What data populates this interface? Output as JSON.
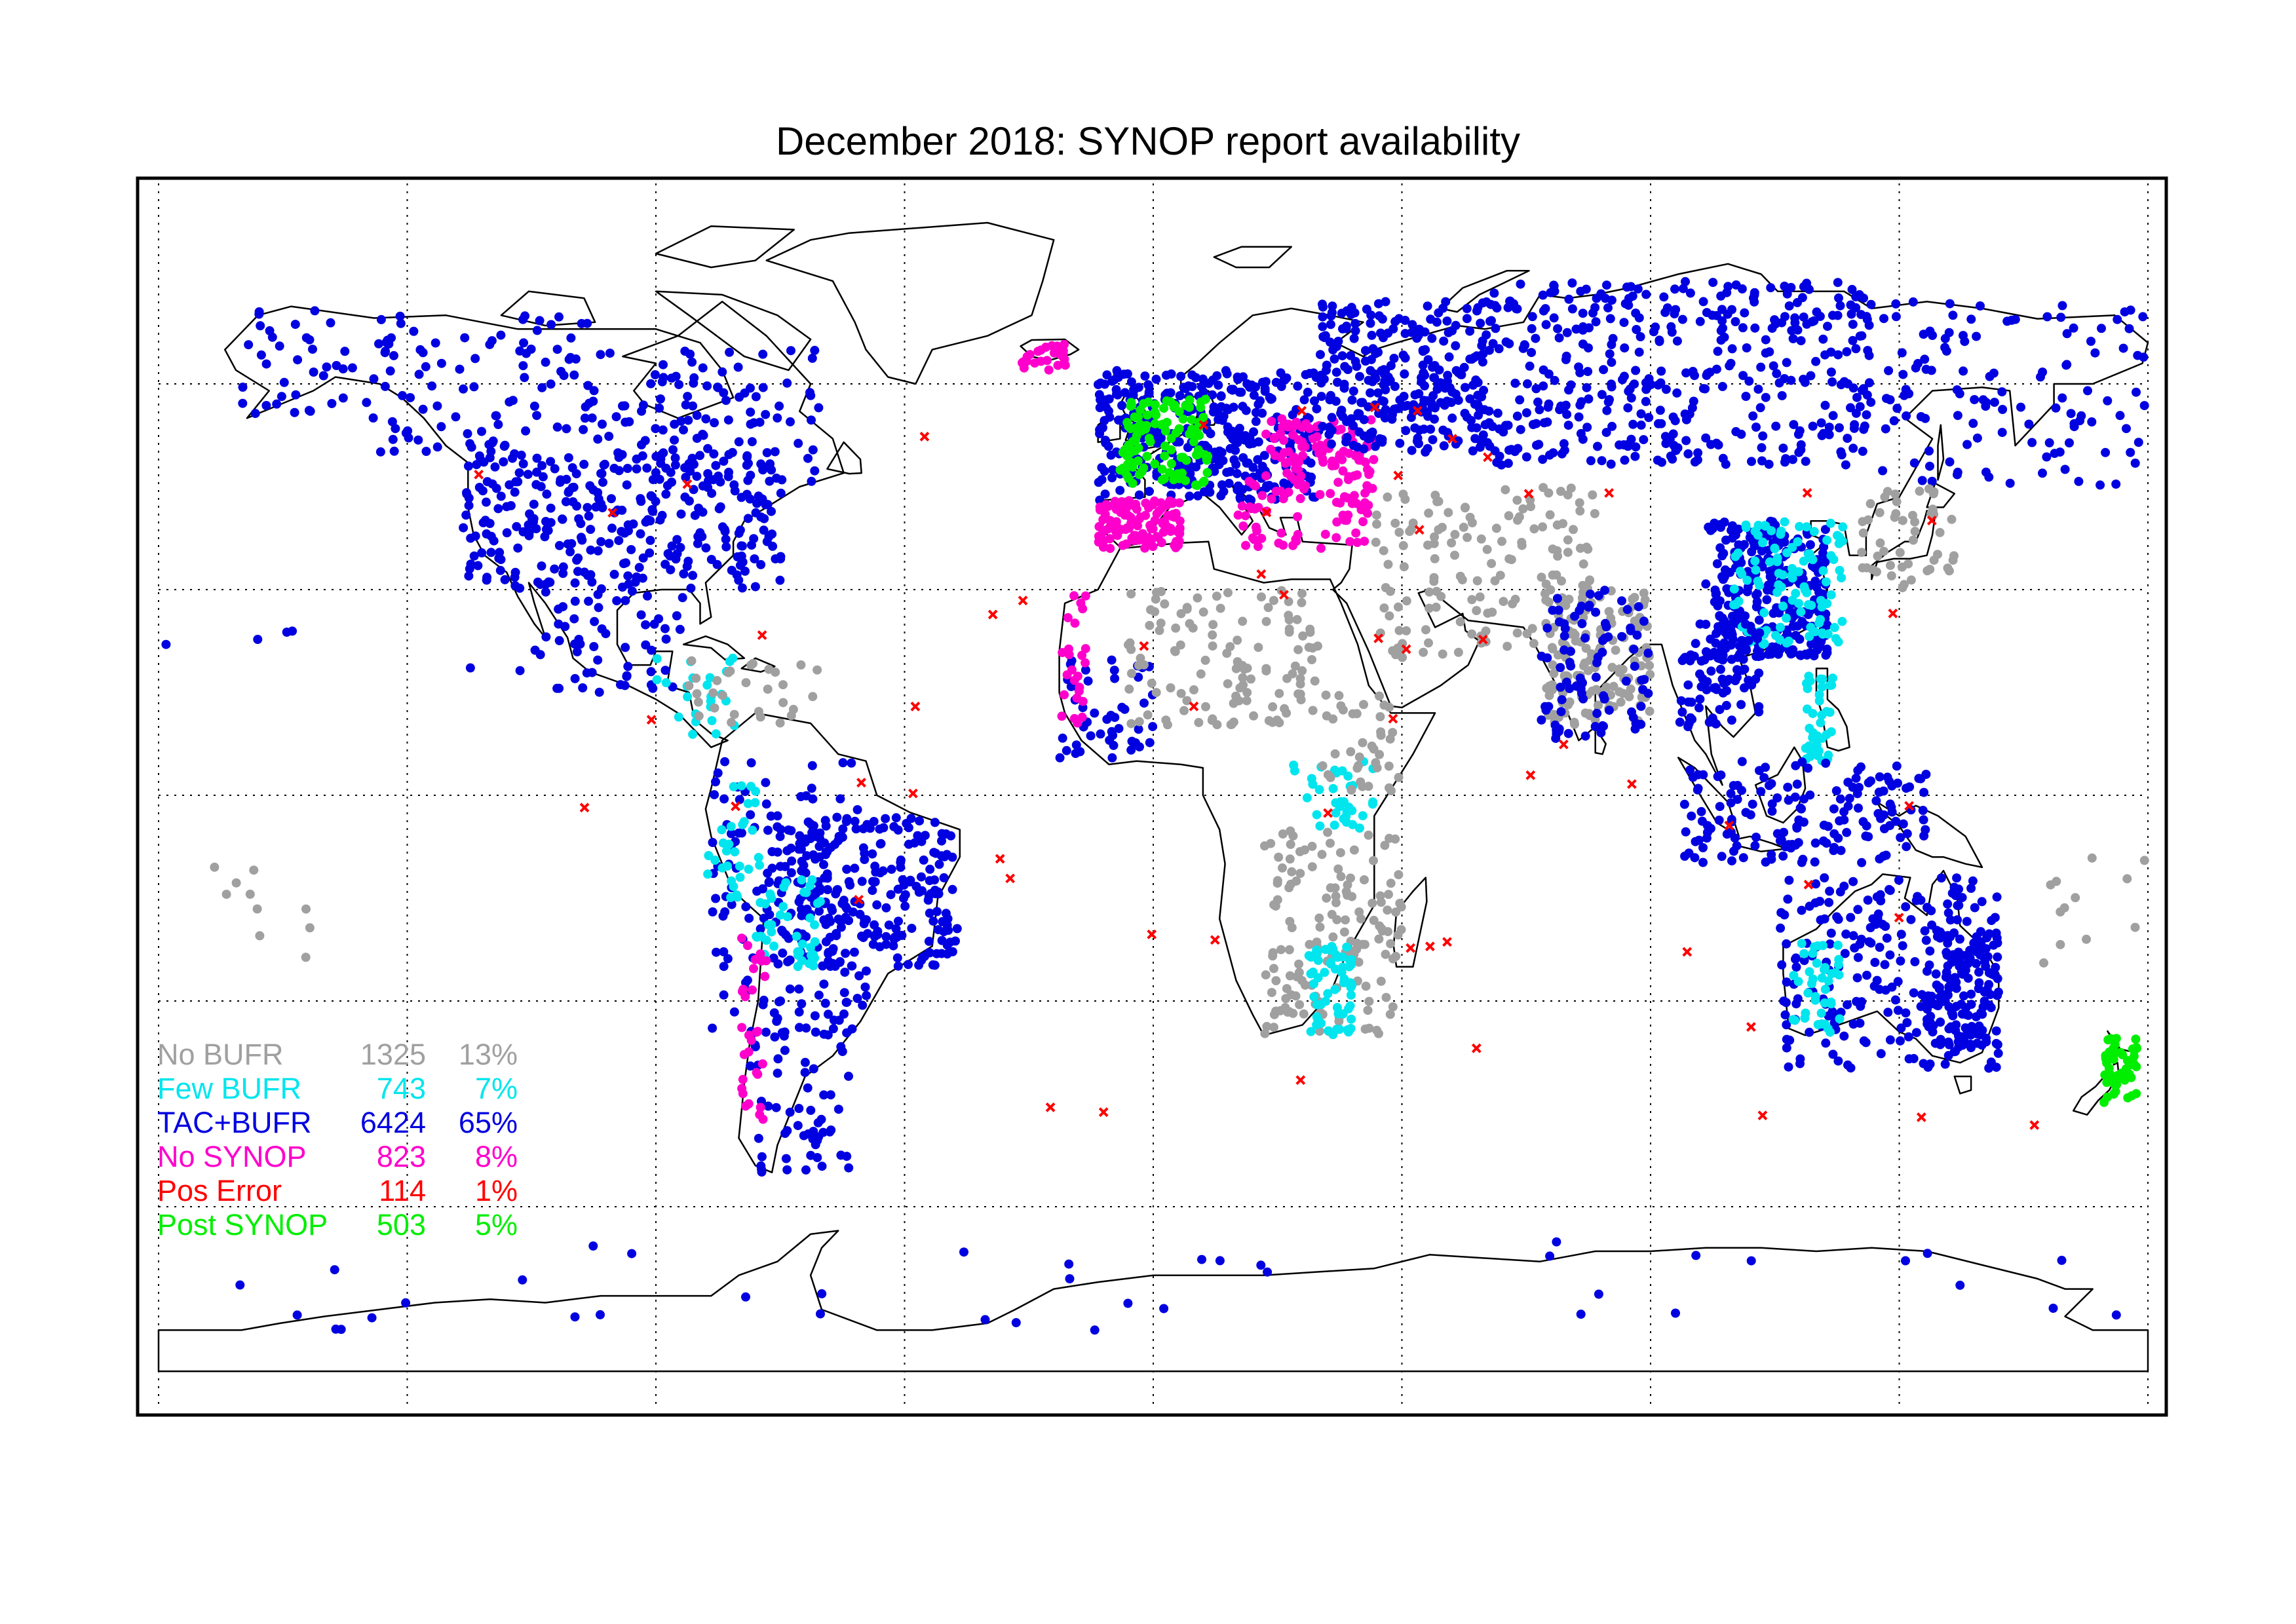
{
  "title": "December 2018: SYNOP report availability",
  "map": {
    "projection": "equirectangular",
    "lon_range": [
      -180,
      180
    ],
    "lat_range": [
      -90,
      90
    ],
    "grid": true,
    "grid_lon_step": 45,
    "grid_lat_step": 30,
    "grid_style": "dotted",
    "coastlines": true,
    "legend_placement": "bottom-left"
  },
  "legend": [
    {
      "category": "No BUFR",
      "count": "1325",
      "percent": "13%",
      "color": "#a0a0a0"
    },
    {
      "category": "Few BUFR",
      "count": "743",
      "percent": "7%",
      "color": "#00e5ee"
    },
    {
      "category": "TAC+BUFR",
      "count": "6424",
      "percent": "65%",
      "color": "#0000e0"
    },
    {
      "category": "No SYNOP",
      "count": "823",
      "percent": "8%",
      "color": "#ff00cc"
    },
    {
      "category": "Pos Error",
      "count": "114",
      "percent": "1%",
      "color": "#ff0000"
    },
    {
      "category": "Post SYNOP",
      "count": "503",
      "percent": "5%",
      "color": "#00ee00"
    }
  ],
  "icons": {
    "station": "dot-marker",
    "pos_error": "cross-marker"
  }
}
